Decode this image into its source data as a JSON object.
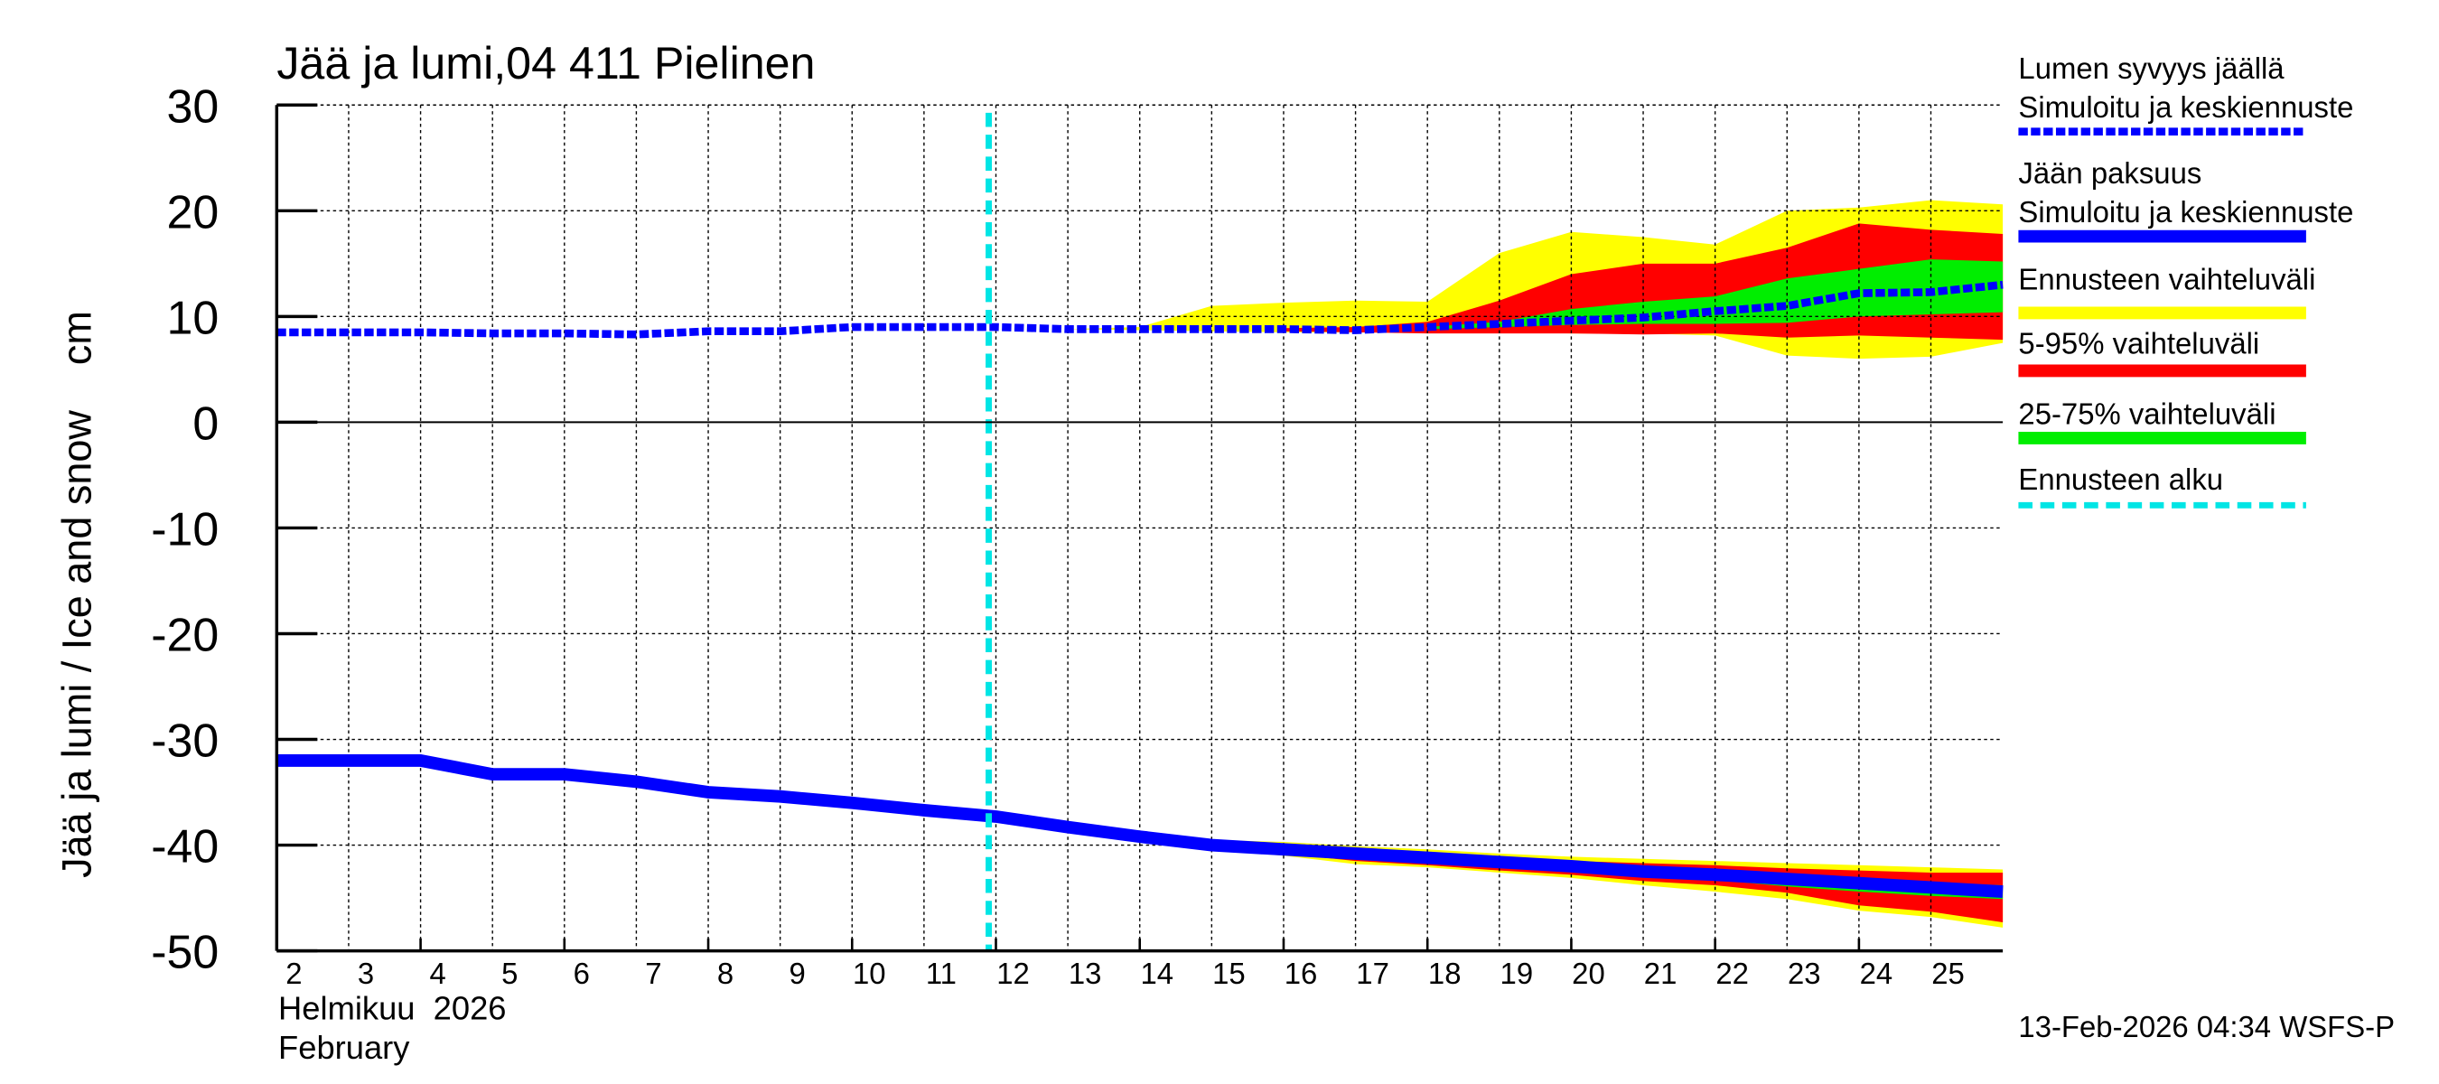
{
  "chart_data": {
    "type": "area",
    "title": "Jää ja lumi,04 411 Pielinen",
    "ylabel": "Jää ja lumi / Ice and snow    cm",
    "xlabel_lines": [
      "Helmikuu  2026",
      "February"
    ],
    "ylim": [
      -50,
      30
    ],
    "yticks": [
      30,
      20,
      10,
      0,
      -10,
      -20,
      -30,
      -40,
      -50
    ],
    "xlim_days": [
      2,
      26
    ],
    "xtick_labels": [
      "2",
      "3",
      "4",
      "5",
      "6",
      "7",
      "8",
      "9",
      "10",
      "11",
      "12",
      "13",
      "14",
      "15",
      "16",
      "17",
      "18",
      "19",
      "20",
      "21",
      "22",
      "23",
      "24",
      "25"
    ],
    "forecast_start_day": 11.9,
    "grid": true,
    "footer": "13-Feb-2026 04:34 WSFS-P",
    "colors": {
      "snow": "#0000ff",
      "ice": "#0000ff",
      "range": "#ffff00",
      "p5_95": "#ff0000",
      "p25_75": "#00ee00",
      "forecast": "#00e5e5"
    },
    "legend": [
      {
        "line1": "Lumen syvyys jäällä",
        "line2": "Simuloitu ja keskiennuste",
        "style": "dashed-blue"
      },
      {
        "line1": "Jään paksuus",
        "line2": "Simuloitu ja keskiennuste",
        "style": "solid-blue"
      },
      {
        "line1": "Ennusteen vaihteluväli",
        "style": "yellow"
      },
      {
        "line1": "5-95% vaihteluväli",
        "style": "red"
      },
      {
        "line1": "25-75% vaihteluväli",
        "style": "green"
      },
      {
        "line1": "Ennusteen alku",
        "style": "cyan-dashed"
      }
    ],
    "snow": {
      "mean": {
        "x": [
          2,
          3,
          4,
          5,
          6,
          7,
          8,
          9,
          10,
          11,
          12,
          13,
          14,
          15,
          16,
          17,
          18,
          19,
          20,
          21,
          22,
          23,
          24,
          25,
          26
        ],
        "y": [
          8.5,
          8.5,
          8.5,
          8.4,
          8.4,
          8.3,
          8.6,
          8.6,
          9,
          9,
          9,
          8.8,
          8.8,
          8.8,
          8.8,
          8.7,
          9,
          9.3,
          9.6,
          9.9,
          10.5,
          11,
          12.2,
          12.3,
          13
        ]
      },
      "range": {
        "x": [
          13,
          14,
          15,
          16,
          17,
          18,
          19,
          20,
          21,
          22,
          23,
          24,
          25,
          26
        ],
        "hi": [
          8.8,
          9,
          11,
          11.3,
          11.5,
          11.4,
          16,
          18,
          17.5,
          16.8,
          20,
          20.3,
          21,
          20.6
        ],
        "lo": [
          8.8,
          8.7,
          8.6,
          8.5,
          8.5,
          8.5,
          8.5,
          8.4,
          8.4,
          8.2,
          6.3,
          6,
          6.2,
          7.5
        ]
      },
      "p5_95": {
        "x": [
          16,
          17,
          18,
          19,
          20,
          21,
          22,
          23,
          24,
          25,
          26
        ],
        "hi": [
          8.9,
          9,
          9.5,
          11.5,
          14,
          15,
          15,
          16.5,
          18.8,
          18.2,
          17.8
        ],
        "lo": [
          8.6,
          8.5,
          8.4,
          8.4,
          8.4,
          8.3,
          8.4,
          8,
          8.2,
          8,
          7.8
        ]
      },
      "p25_75": {
        "x": [
          18,
          19,
          20,
          21,
          22,
          23,
          24,
          25,
          26
        ],
        "hi": [
          9,
          9.5,
          10.7,
          11.4,
          11.9,
          13.6,
          14.5,
          15.4,
          15.2
        ],
        "lo": [
          8.8,
          9,
          9.2,
          9.3,
          9.3,
          9.4,
          10,
          10.2,
          10.4
        ]
      }
    },
    "ice": {
      "mean": {
        "x": [
          2,
          3,
          4,
          5,
          6,
          7,
          8,
          9,
          10,
          11,
          12,
          13,
          14,
          15,
          16,
          17,
          18,
          19,
          20,
          21,
          22,
          23,
          24,
          25,
          26
        ],
        "y": [
          -32,
          -32,
          -32,
          -33.3,
          -33.3,
          -34,
          -35,
          -35.4,
          -36,
          -36.7,
          -37.3,
          -38.3,
          -39.2,
          -40,
          -40.4,
          -40.8,
          -41.2,
          -41.6,
          -42,
          -42.5,
          -42.8,
          -43.2,
          -43.6,
          -44,
          -44.4
        ]
      },
      "range": {
        "x": [
          13,
          14,
          15,
          16,
          17,
          18,
          19,
          20,
          21,
          22,
          23,
          24,
          25,
          26
        ],
        "hi": [
          -38.2,
          -39,
          -39.5,
          -39.7,
          -40.1,
          -40.4,
          -40.8,
          -41.1,
          -41.3,
          -41.5,
          -41.7,
          -41.9,
          -42.1,
          -42.3
        ],
        "lo": [
          -38.4,
          -39.5,
          -40.5,
          -41,
          -41.8,
          -42.1,
          -42.6,
          -43.1,
          -43.8,
          -44.4,
          -45.1,
          -46.2,
          -46.8,
          -47.8
        ]
      },
      "p5_95": {
        "x": [
          14,
          15,
          16,
          17,
          18,
          19,
          20,
          21,
          22,
          23,
          24,
          25,
          26
        ],
        "hi": [
          -39.1,
          -39.8,
          -40.1,
          -40.5,
          -40.8,
          -41.1,
          -41.5,
          -41.7,
          -41.9,
          -42.2,
          -42.4,
          -42.6,
          -42.6
        ],
        "lo": [
          -39.3,
          -40.3,
          -40.8,
          -41.5,
          -41.9,
          -42.4,
          -42.8,
          -43.4,
          -43.8,
          -44.5,
          -45.7,
          -46.3,
          -47.3
        ]
      },
      "p25_75": {
        "x": [
          20,
          21,
          22,
          23,
          24,
          25,
          26
        ],
        "hi": [
          -41.8,
          -42.2,
          -42.5,
          -42.9,
          -43.2,
          -43.5,
          -43.8
        ],
        "lo": [
          -42.2,
          -42.8,
          -43.3,
          -43.9,
          -44.4,
          -44.8,
          -45.1
        ]
      }
    }
  }
}
